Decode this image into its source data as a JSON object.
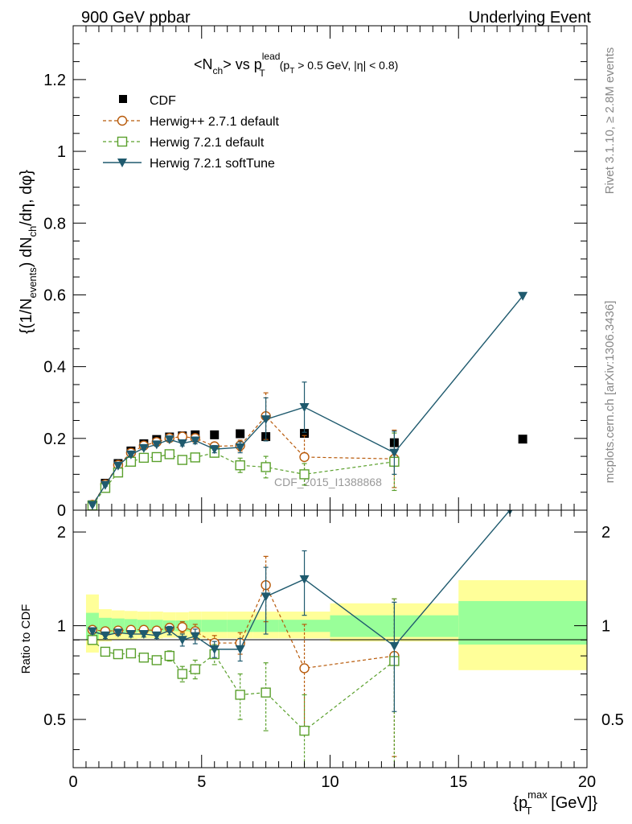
{
  "chart_data": [
    {
      "type": "line",
      "header_left": "900 GeV ppbar",
      "header_right": "Underlying Event",
      "title": "<N_ch> vs p_T^lead (p_T > 0.5 GeV, |η| < 0.8)",
      "title_parts": {
        "a": "<N",
        "a_sub": "ch",
        "b": "> vs p",
        "b_sup": "lead",
        "b_sub": "T",
        "c": "(p",
        "c_sub": "T",
        "d": " > 0.5 GeV, |η| < 0.8)"
      },
      "ylabel": "{(1/N_events) dN_ch/dη, dφ}",
      "ylabel_parts": {
        "a": "{(1/N",
        "a_sub": "events",
        "b": ") dN",
        "b_sub": "ch",
        "c": "/dη, dφ}"
      },
      "xlim": [
        0,
        20
      ],
      "ylim": [
        0,
        1.35
      ],
      "y_ticks": [
        0,
        0.2,
        0.4,
        0.6,
        0.8,
        1,
        1.2
      ],
      "y_tick_labels": [
        "0",
        "0.2",
        "0.4",
        "0.6",
        "0.8",
        "1",
        "1.2"
      ],
      "watermark": "CDF_2015_I1388868",
      "right_label_top": "Rivet 3.1.10, ≥ 2.8M events",
      "right_label_bottom": "mcplots.cern.ch [arXiv:1306.3436]",
      "legend_position": "top-left",
      "series": [
        {
          "name": "CDF",
          "color": "#000000",
          "style": "data",
          "x": [
            0.75,
            1.25,
            1.75,
            2.25,
            2.75,
            3.25,
            3.75,
            4.25,
            4.75,
            5.5,
            6.5,
            7.5,
            9.0,
            12.5,
            17.5
          ],
          "y": [
            0.015,
            0.075,
            0.13,
            0.165,
            0.185,
            0.197,
            0.204,
            0.207,
            0.21,
            0.21,
            0.213,
            0.205,
            0.214,
            0.188,
            0.198
          ]
        },
        {
          "name": "Herwig++ 2.7.1 default",
          "color": "#b85a0a",
          "style": "circle-dashed",
          "x": [
            0.75,
            1.25,
            1.75,
            2.25,
            2.75,
            3.25,
            3.75,
            4.25,
            4.75,
            5.5,
            6.5,
            7.5,
            9.0,
            12.5
          ],
          "y": [
            0.015,
            0.072,
            0.126,
            0.16,
            0.18,
            0.19,
            0.201,
            0.205,
            0.201,
            0.178,
            0.18,
            0.262,
            0.148,
            0.143
          ],
          "err": [
            0.002,
            0.003,
            0.003,
            0.004,
            0.004,
            0.005,
            0.006,
            0.007,
            0.009,
            0.01,
            0.015,
            0.065,
            0.06,
            0.08
          ]
        },
        {
          "name": "Herwig 7.2.1 default",
          "color": "#5aa02c",
          "style": "square-dashed",
          "x": [
            0.75,
            1.25,
            1.75,
            2.25,
            2.75,
            3.25,
            3.75,
            4.25,
            4.75,
            5.5,
            6.5,
            7.5,
            9.0,
            12.5
          ],
          "y": [
            0.013,
            0.062,
            0.105,
            0.135,
            0.146,
            0.148,
            0.156,
            0.14,
            0.147,
            0.16,
            0.125,
            0.12,
            0.1,
            0.135
          ],
          "err": [
            0.002,
            0.003,
            0.003,
            0.004,
            0.004,
            0.005,
            0.006,
            0.008,
            0.01,
            0.012,
            0.02,
            0.03,
            0.03,
            0.08
          ]
        },
        {
          "name": "Herwig 7.2.1 softTune",
          "color": "#1f5a6e",
          "style": "triangle-solid",
          "x": [
            0.75,
            1.25,
            1.75,
            2.25,
            2.75,
            3.25,
            3.75,
            4.25,
            4.75,
            5.5,
            6.5,
            7.5,
            9.0,
            12.5,
            17.5
          ],
          "y": [
            0.014,
            0.07,
            0.124,
            0.155,
            0.173,
            0.183,
            0.197,
            0.186,
            0.194,
            0.17,
            0.175,
            0.253,
            0.287,
            0.16,
            0.597
          ],
          "err": [
            0.002,
            0.003,
            0.003,
            0.004,
            0.004,
            0.005,
            0.006,
            0.007,
            0.009,
            0.01,
            0.015,
            0.06,
            0.07,
            0.06,
            0.0
          ]
        }
      ]
    },
    {
      "type": "line",
      "ylabel": "Ratio to CDF",
      "xlabel": "{p_T^max [GeV]}",
      "xlabel_parts": {
        "a": "{p",
        "a_sup": "max",
        "a_sub": "T",
        "b": " [GeV]}"
      },
      "xlim": [
        0,
        20
      ],
      "ylim": [
        0.35,
        2.35
      ],
      "x_ticks": [
        0,
        5,
        10,
        15,
        20
      ],
      "x_tick_labels": [
        "0",
        "5",
        "10",
        "15",
        "20"
      ],
      "y_ticks": [
        0.5,
        1,
        2
      ],
      "y_tick_labels": [
        "0.5",
        "1",
        "2"
      ],
      "bands": {
        "edges": [
          0.5,
          1.0,
          1.5,
          2.0,
          2.5,
          3.0,
          3.5,
          4.0,
          4.5,
          5.0,
          6.0,
          7.0,
          8.0,
          10.0,
          15.0,
          20.0
        ],
        "inner_color": "#99ff99",
        "outer_color": "#ffff99",
        "inner_lo": [
          0.9,
          0.94,
          0.945,
          0.95,
          0.955,
          0.955,
          0.96,
          0.96,
          0.955,
          0.955,
          0.955,
          0.955,
          0.955,
          0.92,
          0.87
        ],
        "inner_hi": [
          1.1,
          1.06,
          1.055,
          1.05,
          1.045,
          1.045,
          1.04,
          1.04,
          1.045,
          1.045,
          1.045,
          1.045,
          1.045,
          1.08,
          1.2
        ],
        "outer_lo": [
          0.82,
          0.89,
          0.9,
          0.905,
          0.91,
          0.91,
          0.915,
          0.915,
          0.91,
          0.91,
          0.91,
          0.91,
          0.91,
          0.89,
          0.72
        ],
        "outer_hi": [
          1.26,
          1.13,
          1.12,
          1.115,
          1.11,
          1.11,
          1.105,
          1.105,
          1.11,
          1.11,
          1.11,
          1.11,
          1.11,
          1.18,
          1.4
        ]
      },
      "series": [
        {
          "name": "Herwig++ 2.7.1 default",
          "color": "#b85a0a",
          "style": "circle-dashed",
          "x": [
            0.75,
            1.25,
            1.75,
            2.25,
            2.75,
            3.25,
            3.75,
            4.25,
            4.75,
            5.5,
            6.5,
            7.5,
            9.0,
            12.5
          ],
          "y": [
            0.97,
            0.96,
            0.965,
            0.97,
            0.97,
            0.965,
            0.985,
            0.99,
            0.96,
            0.88,
            0.88,
            1.35,
            0.73,
            0.8
          ],
          "err": [
            0.02,
            0.02,
            0.02,
            0.02,
            0.02,
            0.02,
            0.03,
            0.04,
            0.05,
            0.05,
            0.07,
            0.32,
            0.28,
            0.42
          ]
        },
        {
          "name": "Herwig 7.2.1 default",
          "color": "#5aa02c",
          "style": "square-dashed",
          "x": [
            0.75,
            1.25,
            1.75,
            2.25,
            2.75,
            3.25,
            3.75,
            4.25,
            4.75,
            5.5,
            6.5,
            7.5,
            9.0,
            12.5
          ],
          "y": [
            0.9,
            0.825,
            0.81,
            0.815,
            0.79,
            0.775,
            0.8,
            0.7,
            0.725,
            0.81,
            0.6,
            0.61,
            0.46,
            0.77
          ],
          "err": [
            0.02,
            0.02,
            0.02,
            0.02,
            0.02,
            0.02,
            0.03,
            0.04,
            0.05,
            0.06,
            0.1,
            0.15,
            0.14,
            0.45
          ]
        },
        {
          "name": "Herwig 7.2.1 softTune",
          "color": "#1f5a6e",
          "style": "triangle-solid",
          "x": [
            0.75,
            1.25,
            1.75,
            2.25,
            2.75,
            3.25,
            3.75,
            4.25,
            4.75,
            5.5,
            6.5,
            7.5,
            9.0,
            12.5,
            17.0
          ],
          "y": [
            0.96,
            0.93,
            0.95,
            0.94,
            0.94,
            0.93,
            0.965,
            0.9,
            0.925,
            0.84,
            0.84,
            1.24,
            1.41,
            0.86,
            2.35
          ],
          "err": [
            0.02,
            0.02,
            0.02,
            0.02,
            0.02,
            0.02,
            0.03,
            0.04,
            0.05,
            0.05,
            0.07,
            0.3,
            0.33,
            0.33,
            0.0
          ]
        }
      ]
    }
  ]
}
